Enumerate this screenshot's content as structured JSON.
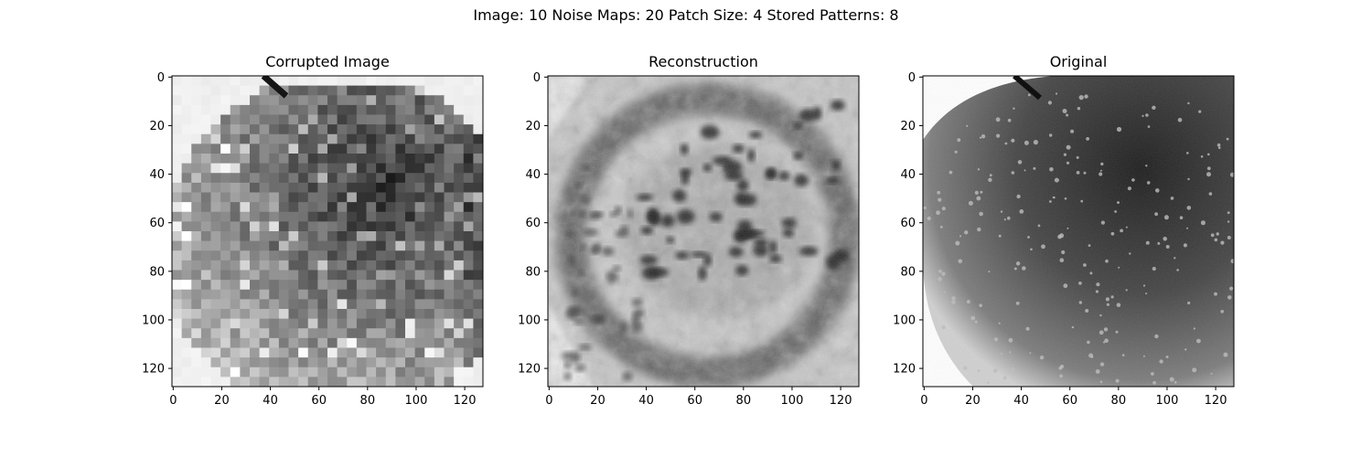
{
  "figure": {
    "suptitle": "Image: 10 Noise Maps: 20 Patch Size: 4 Stored Patterns: 8"
  },
  "chart_data": [
    {
      "type": "heatmap",
      "title": "Corrupted Image",
      "colormap": "gray",
      "image_size": [
        128,
        128
      ],
      "pixelated_block": 4,
      "xlim": [
        0,
        128
      ],
      "ylim": [
        128,
        0
      ],
      "xticks": [
        "0",
        "20",
        "40",
        "60",
        "80",
        "100",
        "120"
      ],
      "yticks": [
        "0",
        "20",
        "40",
        "60",
        "80",
        "100",
        "120"
      ],
      "content": "apple"
    },
    {
      "type": "heatmap",
      "title": "Reconstruction",
      "colormap": "gray",
      "image_size": [
        128,
        128
      ],
      "xlim": [
        0,
        128
      ],
      "ylim": [
        128,
        0
      ],
      "xticks": [
        "0",
        "20",
        "40",
        "60",
        "80",
        "100",
        "120"
      ],
      "yticks": [
        "0",
        "20",
        "40",
        "60",
        "80",
        "100",
        "120"
      ],
      "content": "blurry reconstruction with dark blotches"
    },
    {
      "type": "heatmap",
      "title": "Original",
      "colormap": "gray",
      "image_size": [
        128,
        128
      ],
      "xlim": [
        0,
        128
      ],
      "ylim": [
        128,
        0
      ],
      "xticks": [
        "0",
        "20",
        "40",
        "60",
        "80",
        "100",
        "120"
      ],
      "yticks": [
        "0",
        "20",
        "40",
        "60",
        "80",
        "100",
        "120"
      ],
      "content": "apple"
    }
  ]
}
